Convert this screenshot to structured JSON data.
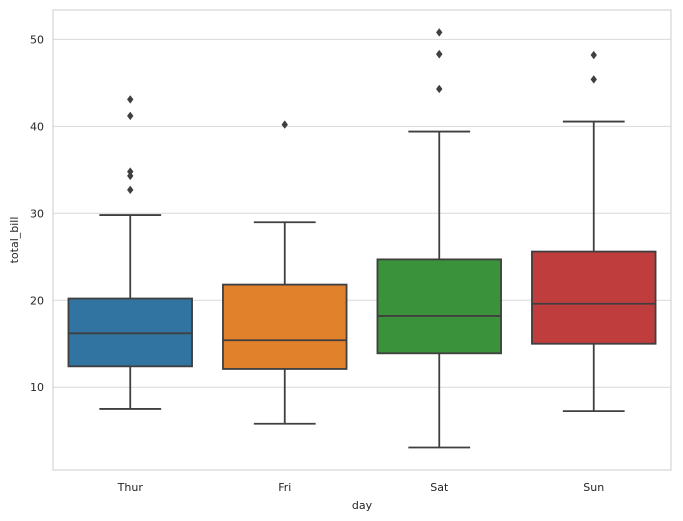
{
  "chart_data": {
    "type": "box",
    "xlabel": "day",
    "ylabel": "total_bill",
    "ylim": [
      0.48,
      53.38
    ],
    "grid": true,
    "yticks": [
      10,
      20,
      30,
      40,
      50
    ],
    "categories": [
      "Thur",
      "Fri",
      "Sat",
      "Sun"
    ],
    "boxes": [
      {
        "category": "Thur",
        "color": "#3274a1",
        "whisker_low": 7.5,
        "q1": 12.4,
        "median": 16.2,
        "q3": 20.2,
        "whisker_high": 29.8,
        "outliers": [
          32.7,
          34.3,
          34.8,
          41.2,
          43.1
        ]
      },
      {
        "category": "Fri",
        "color": "#e1812c",
        "whisker_low": 5.8,
        "q1": 12.1,
        "median": 15.4,
        "q3": 21.8,
        "whisker_high": 28.97,
        "outliers": [
          40.2
        ]
      },
      {
        "category": "Sat",
        "color": "#3a923a",
        "whisker_low": 3.07,
        "q1": 13.9,
        "median": 18.2,
        "q3": 24.7,
        "whisker_high": 39.4,
        "outliers": [
          44.3,
          48.3,
          48.3,
          50.8
        ]
      },
      {
        "category": "Sun",
        "color": "#c03d3e",
        "whisker_low": 7.25,
        "q1": 15.0,
        "median": 19.6,
        "q3": 25.6,
        "whisker_high": 40.55,
        "outliers": [
          45.4,
          48.2
        ]
      }
    ]
  }
}
